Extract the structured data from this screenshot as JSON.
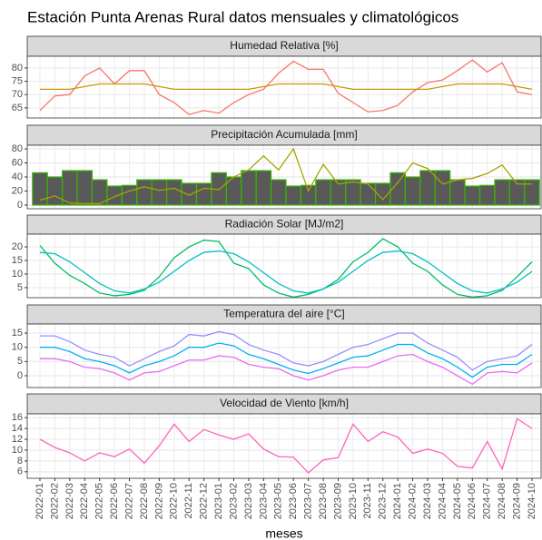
{
  "title": "Estación Punta Arenas Rural datos mensuales y climatológicos",
  "chart_data": [
    {
      "type": "line",
      "title": "Humedad Relativa [%]",
      "ylim": [
        61.2,
        84.4
      ],
      "yticks": [
        65,
        70,
        75,
        80
      ],
      "grid": true,
      "series": [
        {
          "color": "#F8766D",
          "values": [
            64,
            69.5,
            70,
            77,
            80,
            74,
            79,
            79,
            70,
            67,
            62.5,
            64,
            63,
            67,
            70,
            72,
            78,
            82.5,
            79.5,
            79.5,
            70.5,
            67,
            63.5,
            64,
            66,
            71,
            74.5,
            75.5,
            79,
            83,
            78.5,
            82,
            71,
            70
          ]
        },
        {
          "color": "#CD9600",
          "values": [
            72,
            72,
            72,
            73,
            74,
            74,
            74,
            74,
            73,
            72,
            72,
            72,
            72,
            72,
            72,
            73,
            74,
            74,
            74,
            74,
            73,
            72,
            72,
            72,
            72,
            72,
            72,
            73,
            74,
            74,
            74,
            74,
            73,
            72
          ]
        }
      ]
    },
    {
      "type": "bar",
      "title": "Precipitación Acumulada [mm]",
      "ylim": [
        -5.2,
        85.2
      ],
      "yticks": [
        0,
        20,
        40,
        60,
        80
      ],
      "grid": true,
      "series": [
        {
          "type": "bar",
          "color": "#595959",
          "edge_color": "#39B600",
          "values": [
            46,
            40,
            49,
            49,
            36,
            27,
            28,
            36,
            36,
            36,
            31,
            31,
            46,
            40,
            49,
            49,
            36,
            27,
            28,
            36,
            36,
            36,
            31,
            31,
            46,
            40,
            49,
            49,
            36,
            27,
            28,
            36,
            36,
            36
          ]
        },
        {
          "type": "line",
          "color": "#A3A500",
          "values": [
            7,
            13,
            3,
            2,
            2,
            12,
            20,
            26,
            21,
            24,
            14,
            24,
            22,
            40,
            50,
            70,
            50,
            80,
            20,
            58,
            30,
            33,
            30,
            8,
            32,
            60,
            52,
            30,
            36,
            38,
            45,
            57,
            30,
            30
          ]
        }
      ]
    },
    {
      "type": "line",
      "title": "Radiación Solar [MJ/m2]",
      "ylim": [
        1.3,
        24.7
      ],
      "yticks": [
        5,
        10,
        15,
        20
      ],
      "grid": true,
      "series": [
        {
          "color": "#00BE67",
          "values": [
            20.5,
            14,
            9.5,
            6.5,
            3,
            2,
            2.5,
            4,
            9,
            16,
            20,
            22.5,
            22,
            14,
            12,
            6,
            3,
            1.5,
            2.5,
            4.5,
            8,
            14.5,
            18,
            23,
            20,
            14,
            11,
            6,
            2.5,
            1.5,
            2,
            4,
            9,
            14.5
          ]
        },
        {
          "color": "#00BFC4",
          "values": [
            18,
            17.5,
            14.5,
            10.5,
            6.5,
            3.8,
            3,
            4.5,
            7,
            11,
            15,
            18,
            18.5,
            17.5,
            14.5,
            10.5,
            6.5,
            3.8,
            3,
            4.5,
            7,
            11,
            15,
            18,
            18.5,
            17.5,
            14.5,
            10.5,
            6.5,
            3.8,
            3,
            4.5,
            7,
            11
          ]
        }
      ]
    },
    {
      "type": "line",
      "title": "Temperatura del aire [°C]",
      "ylim": [
        -4.15,
        18.2
      ],
      "yticks": [
        0,
        5,
        10,
        15
      ],
      "grid": true,
      "series": [
        {
          "color": "#9590FF",
          "values": [
            14,
            14,
            12,
            9,
            7.5,
            6.5,
            3.5,
            6,
            8.5,
            10.5,
            14.5,
            14,
            15.5,
            14.5,
            11,
            9,
            7.5,
            4.5,
            3.5,
            5,
            7.5,
            10,
            11,
            13,
            15,
            15,
            11.5,
            9,
            6.5,
            2,
            5,
            6,
            7,
            11
          ]
        },
        {
          "color": "#00B0F6",
          "values": [
            10,
            10,
            8.5,
            6,
            5,
            3.5,
            1,
            3.5,
            5,
            7,
            10,
            10,
            11.5,
            10.5,
            7.5,
            6,
            4,
            2,
            0.8,
            2.5,
            4.5,
            6.5,
            7,
            9,
            11,
            11,
            8,
            6,
            3,
            -0.5,
            3,
            4,
            4,
            7.5
          ]
        },
        {
          "color": "#E76BF3",
          "values": [
            6,
            6,
            5,
            3,
            2.5,
            1,
            -1.5,
            1,
            1.5,
            3.5,
            5.5,
            5.5,
            7,
            6.5,
            4,
            3,
            2.5,
            0,
            -1.5,
            0,
            2,
            3,
            3,
            5,
            7,
            7.5,
            5,
            3,
            0,
            -3,
            1,
            1.5,
            1,
            4.5
          ]
        }
      ]
    },
    {
      "type": "line",
      "title": "Velocidad de Viento [km/h]",
      "ylim": [
        4.8,
        16.7
      ],
      "yticks": [
        6,
        8,
        10,
        12,
        14,
        16
      ],
      "grid": true,
      "x_label": "meses",
      "categories": [
        "2022-01",
        "2022-02",
        "2022-03",
        "2022-04",
        "2022-05",
        "2022-06",
        "2022-07",
        "2022-08",
        "2022-09",
        "2022-10",
        "2022-11",
        "2022-12",
        "2023-01",
        "2023-02",
        "2023-03",
        "2023-04",
        "2023-05",
        "2023-06",
        "2023-07",
        "2023-08",
        "2023-09",
        "2023-10",
        "2023-11",
        "2023-12",
        "2024-01",
        "2024-02",
        "2024-03",
        "2024-04",
        "2024-05",
        "2024-06",
        "2024-07",
        "2024-08",
        "2024-09",
        "2024-10"
      ],
      "series": [
        {
          "color": "#FF62BC",
          "values": [
            12,
            10.5,
            9.5,
            8,
            9.5,
            8.8,
            10.2,
            7.6,
            10.8,
            14.8,
            11.6,
            13.8,
            12.8,
            12,
            13,
            10.2,
            8.8,
            8.7,
            5.8,
            8.2,
            8.6,
            14.8,
            11.6,
            13.4,
            12.4,
            9.4,
            10.2,
            9.4,
            7,
            6.7,
            11.6,
            6.5,
            15.8,
            14
          ]
        }
      ]
    }
  ]
}
